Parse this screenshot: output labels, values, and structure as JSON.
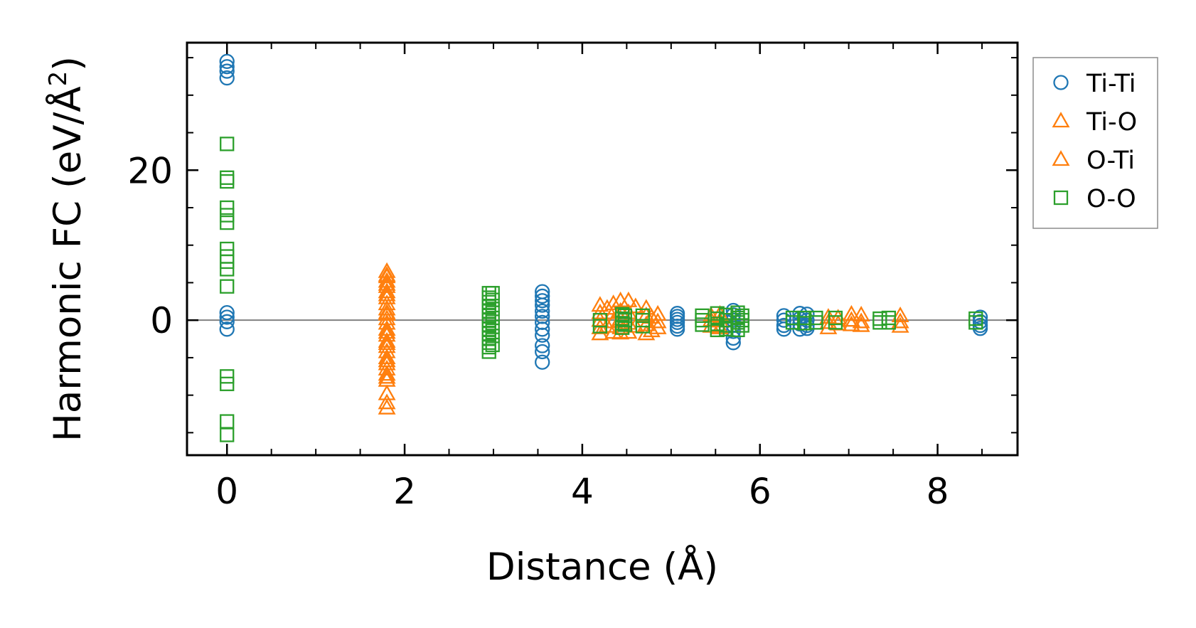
{
  "chart_data": {
    "type": "scatter",
    "xlabel": "Distance (Å)",
    "ylabel_main": "Harmonic FC (eV/Å",
    "ylabel_sup": "2",
    "ylabel_close": ")",
    "xlim": [
      -0.45,
      8.9
    ],
    "ylim": [
      -18,
      37
    ],
    "xticks": [
      0,
      2,
      4,
      6,
      8
    ],
    "xtick_labels": [
      "0",
      "2",
      "4",
      "6",
      "8"
    ],
    "yticks": [
      0,
      20
    ],
    "ytick_labels": [
      "0",
      "20"
    ],
    "x_minor_step": 0.5,
    "y_minor_step": 5,
    "reference_line_y": 0,
    "grid": false,
    "legend_position": "upper-right outside",
    "series": [
      {
        "name": "Ti-Ti",
        "marker": "circle",
        "filled": false,
        "color": "#1f77b4",
        "points": [
          [
            0,
            34.5
          ],
          [
            0,
            33.8
          ],
          [
            0,
            33.2
          ],
          [
            0,
            32.3
          ],
          [
            0,
            1
          ],
          [
            0,
            0.4
          ],
          [
            0,
            -0.2
          ],
          [
            0,
            -1.2
          ],
          [
            3.55,
            3.8
          ],
          [
            3.55,
            3.2
          ],
          [
            3.55,
            2.6
          ],
          [
            3.55,
            2
          ],
          [
            3.55,
            1.2
          ],
          [
            3.55,
            0.5
          ],
          [
            3.55,
            -0.3
          ],
          [
            3.55,
            -1.2
          ],
          [
            3.55,
            -2
          ],
          [
            3.55,
            -3.4
          ],
          [
            3.55,
            -4.2
          ],
          [
            3.55,
            -5.6
          ],
          [
            5.07,
            0.9
          ],
          [
            5.07,
            0.5
          ],
          [
            5.07,
            0.1
          ],
          [
            5.07,
            -0.3
          ],
          [
            5.07,
            -0.8
          ],
          [
            5.07,
            -1.2
          ],
          [
            5.7,
            1.3
          ],
          [
            5.7,
            0.7
          ],
          [
            5.7,
            0
          ],
          [
            5.7,
            -0.7
          ],
          [
            5.7,
            -1.5
          ],
          [
            5.7,
            -2.4
          ],
          [
            5.7,
            -3
          ],
          [
            6.27,
            0.6
          ],
          [
            6.27,
            0
          ],
          [
            6.27,
            -0.7
          ],
          [
            6.27,
            -1.2
          ],
          [
            6.45,
            0.9
          ],
          [
            6.45,
            0.2
          ],
          [
            6.45,
            -0.5
          ],
          [
            6.45,
            -1.2
          ],
          [
            6.53,
            0.8
          ],
          [
            6.53,
            0
          ],
          [
            6.53,
            -0.7
          ],
          [
            6.53,
            -1.1
          ],
          [
            8.48,
            0.4
          ],
          [
            8.48,
            -0.2
          ],
          [
            8.48,
            -0.7
          ],
          [
            8.48,
            -1.1
          ]
        ]
      },
      {
        "name": "Ti-O",
        "marker": "triangle",
        "filled": false,
        "color": "#ff7f0e",
        "points": [
          [
            1.8,
            6.5
          ],
          [
            1.8,
            5.8
          ],
          [
            1.8,
            5.2
          ],
          [
            1.8,
            4.5
          ],
          [
            1.8,
            3.8
          ],
          [
            1.8,
            3
          ],
          [
            1.8,
            2.2
          ],
          [
            1.8,
            1.5
          ],
          [
            1.8,
            0.8
          ],
          [
            1.8,
            0.2
          ],
          [
            1.8,
            -0.4
          ],
          [
            1.8,
            -1.2
          ],
          [
            1.8,
            -2
          ],
          [
            1.8,
            -2.8
          ],
          [
            1.8,
            -3.5
          ],
          [
            1.8,
            -4.2
          ],
          [
            1.8,
            -5
          ],
          [
            1.8,
            -5.8
          ],
          [
            1.8,
            -6.5
          ],
          [
            1.8,
            -7.2
          ],
          [
            1.8,
            -8
          ],
          [
            1.8,
            -9.8
          ],
          [
            1.8,
            -11
          ],
          [
            1.8,
            -11.7
          ],
          [
            4.2,
            2
          ],
          [
            4.2,
            1
          ],
          [
            4.2,
            0
          ],
          [
            4.2,
            -1
          ],
          [
            4.2,
            -1.8
          ],
          [
            4.35,
            2.2
          ],
          [
            4.35,
            1
          ],
          [
            4.35,
            -0.2
          ],
          [
            4.35,
            -1.6
          ],
          [
            4.43,
            2.6
          ],
          [
            4.43,
            1.2
          ],
          [
            4.43,
            0.2
          ],
          [
            4.43,
            -1
          ],
          [
            4.43,
            -1.7
          ],
          [
            4.52,
            2.6
          ],
          [
            4.52,
            1
          ],
          [
            4.52,
            -0.4
          ],
          [
            4.52,
            -1.6
          ],
          [
            4.72,
            1.6
          ],
          [
            4.72,
            0.6
          ],
          [
            4.72,
            -0.6
          ],
          [
            4.72,
            -1.8
          ],
          [
            4.85,
            0.8
          ],
          [
            4.85,
            -0.2
          ],
          [
            4.85,
            -1
          ],
          [
            5.45,
            0.6
          ],
          [
            5.45,
            0
          ],
          [
            5.45,
            -0.8
          ],
          [
            5.55,
            0.8
          ],
          [
            5.55,
            -0.1
          ],
          [
            5.55,
            -1
          ],
          [
            6.77,
            0.4
          ],
          [
            6.77,
            -0.3
          ],
          [
            6.77,
            -1
          ],
          [
            6.88,
            0.3
          ],
          [
            6.88,
            -0.5
          ],
          [
            7.03,
            0.8
          ],
          [
            7.03,
            0
          ],
          [
            7.03,
            -0.6
          ],
          [
            7.14,
            0.7
          ],
          [
            7.14,
            -0.2
          ],
          [
            7.14,
            -0.7
          ],
          [
            7.58,
            0.6
          ],
          [
            7.58,
            -0.2
          ],
          [
            7.58,
            -0.8
          ]
        ]
      },
      {
        "name": "O-Ti",
        "marker": "triangle",
        "filled": false,
        "color": "#ff7f0e",
        "points": [
          [
            1.8,
            6
          ],
          [
            1.8,
            4.8
          ],
          [
            1.8,
            3.4
          ],
          [
            1.8,
            1
          ],
          [
            1.8,
            -1.6
          ],
          [
            1.8,
            -3.1
          ],
          [
            1.8,
            -5.4
          ],
          [
            1.8,
            -7.6
          ],
          [
            4.28,
            1.6
          ],
          [
            4.28,
            -0.8
          ],
          [
            4.6,
            1.8
          ],
          [
            4.6,
            -0.8
          ],
          [
            4.78,
            0.4
          ],
          [
            4.78,
            -1.4
          ]
        ]
      },
      {
        "name": "O-O",
        "marker": "square",
        "filled": false,
        "color": "#2ca02c",
        "points": [
          [
            0,
            23.5
          ],
          [
            0,
            19
          ],
          [
            0,
            18.5
          ],
          [
            0,
            15
          ],
          [
            0,
            14
          ],
          [
            0,
            13
          ],
          [
            0,
            9.5
          ],
          [
            0,
            8.5
          ],
          [
            0,
            7.8
          ],
          [
            0,
            6.8
          ],
          [
            0,
            4.5
          ],
          [
            0,
            -7.5
          ],
          [
            0,
            -8.5
          ],
          [
            0,
            -13.5
          ],
          [
            0,
            -15.3
          ],
          [
            2.95,
            3.6
          ],
          [
            2.95,
            3
          ],
          [
            2.95,
            2.4
          ],
          [
            2.95,
            1.8
          ],
          [
            2.95,
            1.2
          ],
          [
            2.95,
            0.6
          ],
          [
            2.95,
            0
          ],
          [
            2.95,
            -0.6
          ],
          [
            2.95,
            -1.2
          ],
          [
            2.95,
            -1.8
          ],
          [
            2.95,
            -2.4
          ],
          [
            2.95,
            -3
          ],
          [
            2.95,
            -3.6
          ],
          [
            2.95,
            -4.2
          ],
          [
            2.99,
            3.6
          ],
          [
            2.99,
            2.7
          ],
          [
            2.99,
            1.5
          ],
          [
            2.99,
            0.3
          ],
          [
            2.99,
            -0.9
          ],
          [
            2.99,
            -2.1
          ],
          [
            2.99,
            -3.3
          ],
          [
            4.2,
            0
          ],
          [
            4.2,
            -0.8
          ],
          [
            4.45,
            0.8
          ],
          [
            4.45,
            0.2
          ],
          [
            4.45,
            -0.4
          ],
          [
            4.45,
            -1
          ],
          [
            4.48,
            0.6
          ],
          [
            4.48,
            0
          ],
          [
            4.48,
            -0.6
          ],
          [
            4.68,
            0.6
          ],
          [
            4.68,
            0
          ],
          [
            4.68,
            -0.8
          ],
          [
            5.35,
            0.6
          ],
          [
            5.35,
            0
          ],
          [
            5.35,
            -0.6
          ],
          [
            5.52,
            0.9
          ],
          [
            5.52,
            0.2
          ],
          [
            5.52,
            -0.5
          ],
          [
            5.52,
            -1.3
          ],
          [
            5.62,
            0.7
          ],
          [
            5.62,
            0
          ],
          [
            5.62,
            -0.7
          ],
          [
            5.62,
            -1.2
          ],
          [
            5.75,
            1
          ],
          [
            5.75,
            0.3
          ],
          [
            5.75,
            -0.3
          ],
          [
            5.75,
            -1.3
          ],
          [
            5.8,
            0.6
          ],
          [
            5.8,
            0
          ],
          [
            5.8,
            -0.7
          ],
          [
            6.37,
            0.3
          ],
          [
            6.37,
            -0.3
          ],
          [
            6.5,
            0.3
          ],
          [
            6.5,
            -0.4
          ],
          [
            6.63,
            0.3
          ],
          [
            6.63,
            -0.3
          ],
          [
            6.85,
            0.3
          ],
          [
            6.85,
            -0.3
          ],
          [
            7.35,
            0.2
          ],
          [
            7.35,
            -0.3
          ],
          [
            7.45,
            0.3
          ],
          [
            7.45,
            -0.3
          ],
          [
            8.43,
            0.2
          ],
          [
            8.43,
            -0.3
          ]
        ]
      }
    ]
  }
}
